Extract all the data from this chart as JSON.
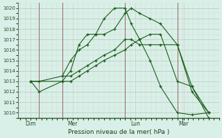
{
  "title": "Pression niveau de la mer( hPa )",
  "bg_color": "#d8f0e8",
  "plot_bg_color": "#d8f0e8",
  "line_color": "#1a5c1a",
  "grid_major_color": "#b8d8cc",
  "grid_minor_color": "#cccccc",
  "vline_color": "#cc8888",
  "ylim": [
    1009.5,
    1020.5
  ],
  "yticks": [
    1010,
    1011,
    1012,
    1013,
    1014,
    1015,
    1016,
    1017,
    1018,
    1019,
    1020
  ],
  "xlim": [
    -0.1,
    9.5
  ],
  "day_labels": [
    "Dim",
    "Mer",
    "Lun",
    "Mar"
  ],
  "day_positions": [
    0.5,
    2.5,
    5.5,
    7.8
  ],
  "vlines": [
    0.9,
    2.0,
    5.0,
    7.5
  ],
  "series": [
    {
      "x": [
        0.5,
        0.9,
        2.0,
        2.4,
        2.8,
        3.2,
        3.6,
        4.0,
        4.5,
        5.0,
        5.3,
        5.7,
        6.2,
        6.7,
        7.5,
        8.2,
        9.0
      ],
      "y": [
        1013,
        1012,
        1013,
        1014,
        1016.5,
        1017.5,
        1017.5,
        1017.5,
        1018,
        1019.5,
        1020,
        1019.5,
        1019,
        1018.5,
        1016.5,
        1012.5,
        1009.5
      ]
    },
    {
      "x": [
        0.5,
        0.9,
        2.0,
        2.4,
        2.8,
        3.2,
        3.6,
        4.0,
        4.5,
        5.0,
        5.3,
        5.7,
        6.2,
        6.7,
        7.5,
        8.2,
        9.0
      ],
      "y": [
        1013,
        1013,
        1013.5,
        1013.5,
        1014,
        1014.5,
        1015,
        1015.5,
        1016,
        1017,
        1017,
        1016.5,
        1016.5,
        1016.5,
        1016.5,
        1012,
        1010
      ]
    },
    {
      "x": [
        0.5,
        2.0,
        2.4,
        2.8,
        3.2,
        3.6,
        4.0,
        4.5,
        5.0,
        5.3,
        5.7,
        6.2,
        6.7,
        7.5,
        8.2,
        9.0
      ],
      "y": [
        1013,
        1013,
        1013,
        1013.5,
        1014,
        1014.5,
        1015,
        1015.5,
        1016,
        1016.5,
        1017,
        1017.5,
        1017.5,
        1013,
        1012.5,
        1010
      ]
    },
    {
      "x": [
        2.0,
        2.4,
        2.8,
        3.2,
        3.6,
        4.0,
        4.5,
        5.0,
        5.3,
        5.7,
        6.2,
        6.7,
        7.5,
        8.2,
        9.0
      ],
      "y": [
        1013.5,
        1015,
        1016,
        1016.5,
        1017.5,
        1019,
        1020,
        1020,
        1018.5,
        1017,
        1015,
        1012.5,
        1010,
        1009.8,
        1010
      ]
    }
  ]
}
